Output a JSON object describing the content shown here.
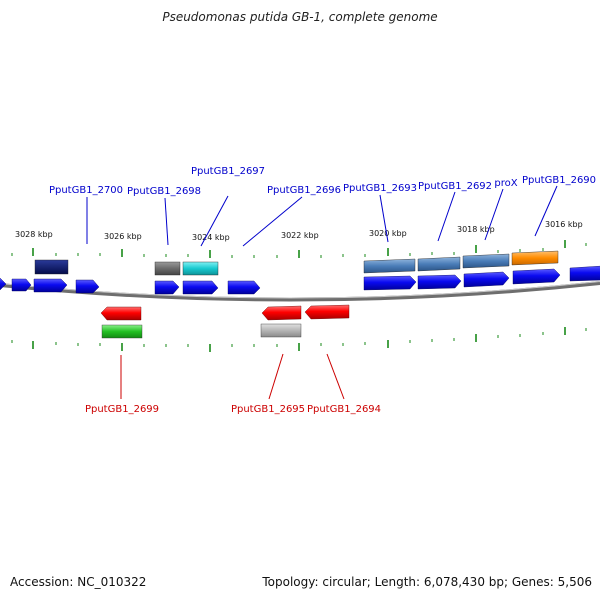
{
  "title": "Pseudomonas putida GB-1, complete genome",
  "footer": {
    "accession": "Accession: NC_010322",
    "summary": "Topology: circular; Length: 6,078,430 bp; Genes: 5,506"
  },
  "colors": {
    "background": "#ffffff",
    "backbone": "#808080",
    "tick": "#1a8a1a",
    "forward_label": "#0000cc",
    "reverse_label": "#cc0000"
  },
  "scale": {
    "unit": "kbp",
    "major_labels": [
      "3028 kbp",
      "3026 kbp",
      "3024 kbp",
      "3022 kbp",
      "3020 kbp",
      "3018 kbp",
      "3016 kbp"
    ]
  },
  "genes": [
    {
      "name": "PputGB1_2700",
      "strand": "forward",
      "color": "#0b1f7a"
    },
    {
      "name": "PputGB1_2699",
      "strand": "reverse",
      "color": "#ff0000"
    },
    {
      "name": "PputGB1_2698",
      "strand": "forward",
      "color": "#6b6b6b"
    },
    {
      "name": "PputGB1_2697",
      "strand": "forward",
      "color": "#17c9cf"
    },
    {
      "name": "PputGB1_2696",
      "strand": "forward",
      "color": "#0a0af0"
    },
    {
      "name": "PputGB1_2695",
      "strand": "reverse",
      "color": "#b5b5b5"
    },
    {
      "name": "PputGB1_2694",
      "strand": "reverse",
      "color": "#ff0000"
    },
    {
      "name": "PputGB1_2693",
      "strand": "forward",
      "color": "#4a7db8"
    },
    {
      "name": "PputGB1_2692",
      "strand": "forward",
      "color": "#4a7db8"
    },
    {
      "name": "proX",
      "strand": "forward",
      "color": "#4a7db8"
    },
    {
      "name": "PputGB1_2690",
      "strand": "forward",
      "color": "#ff8c00"
    }
  ]
}
